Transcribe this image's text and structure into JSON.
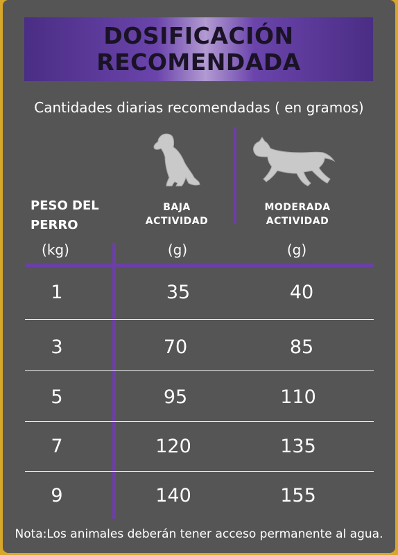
{
  "title": {
    "line1": "DOSIFICACIÓN",
    "line2": "RECOMENDADA"
  },
  "subtitle": "Cantidades diarias recomendadas ( en gramos)",
  "headers": {
    "weight": [
      "PESO DEL",
      "PERRO"
    ],
    "low_activity": [
      "BAJA",
      "ACTIVIDAD"
    ],
    "moderate_activity": [
      "MODERADA",
      "ACTIVIDAD"
    ]
  },
  "units": {
    "weight": "(kg)",
    "low": "(g)",
    "moderate": "(g)"
  },
  "icons": {
    "low_activity": "sitting-dog-icon",
    "moderate_activity": "running-dog-icon"
  },
  "rows": [
    {
      "weight": "1",
      "low": "35",
      "moderate": "40"
    },
    {
      "weight": "3",
      "low": "70",
      "moderate": "85"
    },
    {
      "weight": "5",
      "low": "95",
      "moderate": "110"
    },
    {
      "weight": "7",
      "low": "120",
      "moderate": "135"
    },
    {
      "weight": "9",
      "low": "140",
      "moderate": "155"
    }
  ],
  "note": "Nota:Los animales deberán tener acceso permanente al agua.",
  "colors": {
    "border": "#d7a72a",
    "background": "#555555",
    "accent": "#6b3fa6",
    "icon": "#c9c9c9"
  }
}
